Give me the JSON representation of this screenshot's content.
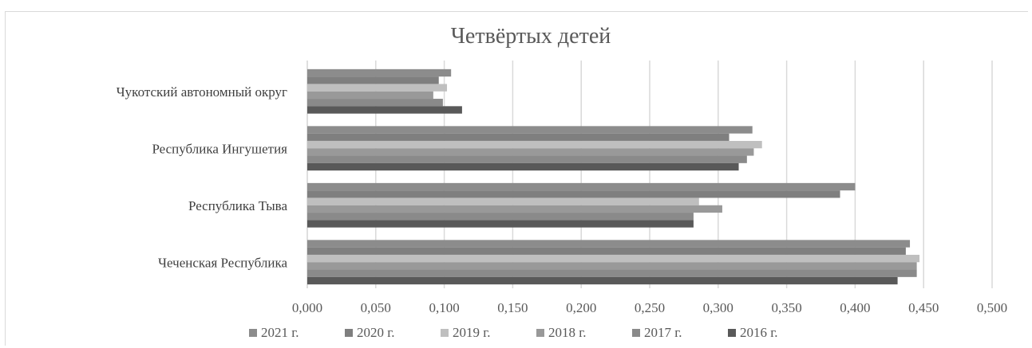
{
  "chart_data": {
    "type": "bar",
    "orientation": "horizontal",
    "title": "Четвёртых детей",
    "categories": [
      "Чукотский автономный округ",
      "Республика Ингушетия",
      "Республика Тыва",
      "Чеченская Республика"
    ],
    "series": [
      {
        "name": "2021 г.",
        "color": "#8c8c8c",
        "values": [
          0.105,
          0.325,
          0.4,
          0.44
        ]
      },
      {
        "name": "2020 г.",
        "color": "#7f7f7f",
        "values": [
          0.096,
          0.308,
          0.389,
          0.437
        ]
      },
      {
        "name": "2019 г.",
        "color": "#bfbfbf",
        "values": [
          0.102,
          0.332,
          0.286,
          0.447
        ]
      },
      {
        "name": "2018 г.",
        "color": "#999999",
        "values": [
          0.092,
          0.326,
          0.303,
          0.445
        ]
      },
      {
        "name": "2017 г.",
        "color": "#8a8a8a",
        "values": [
          0.099,
          0.321,
          0.282,
          0.445
        ]
      },
      {
        "name": "2016 г.",
        "color": "#595959",
        "values": [
          0.113,
          0.315,
          0.282,
          0.431
        ]
      }
    ],
    "xlim": [
      0,
      0.5
    ],
    "xticks": [
      "0,000",
      "0,050",
      "0,100",
      "0,150",
      "0,200",
      "0,250",
      "0,300",
      "0,350",
      "0,400",
      "0,450",
      "0,500"
    ],
    "grid": true,
    "legend": "bottom"
  }
}
